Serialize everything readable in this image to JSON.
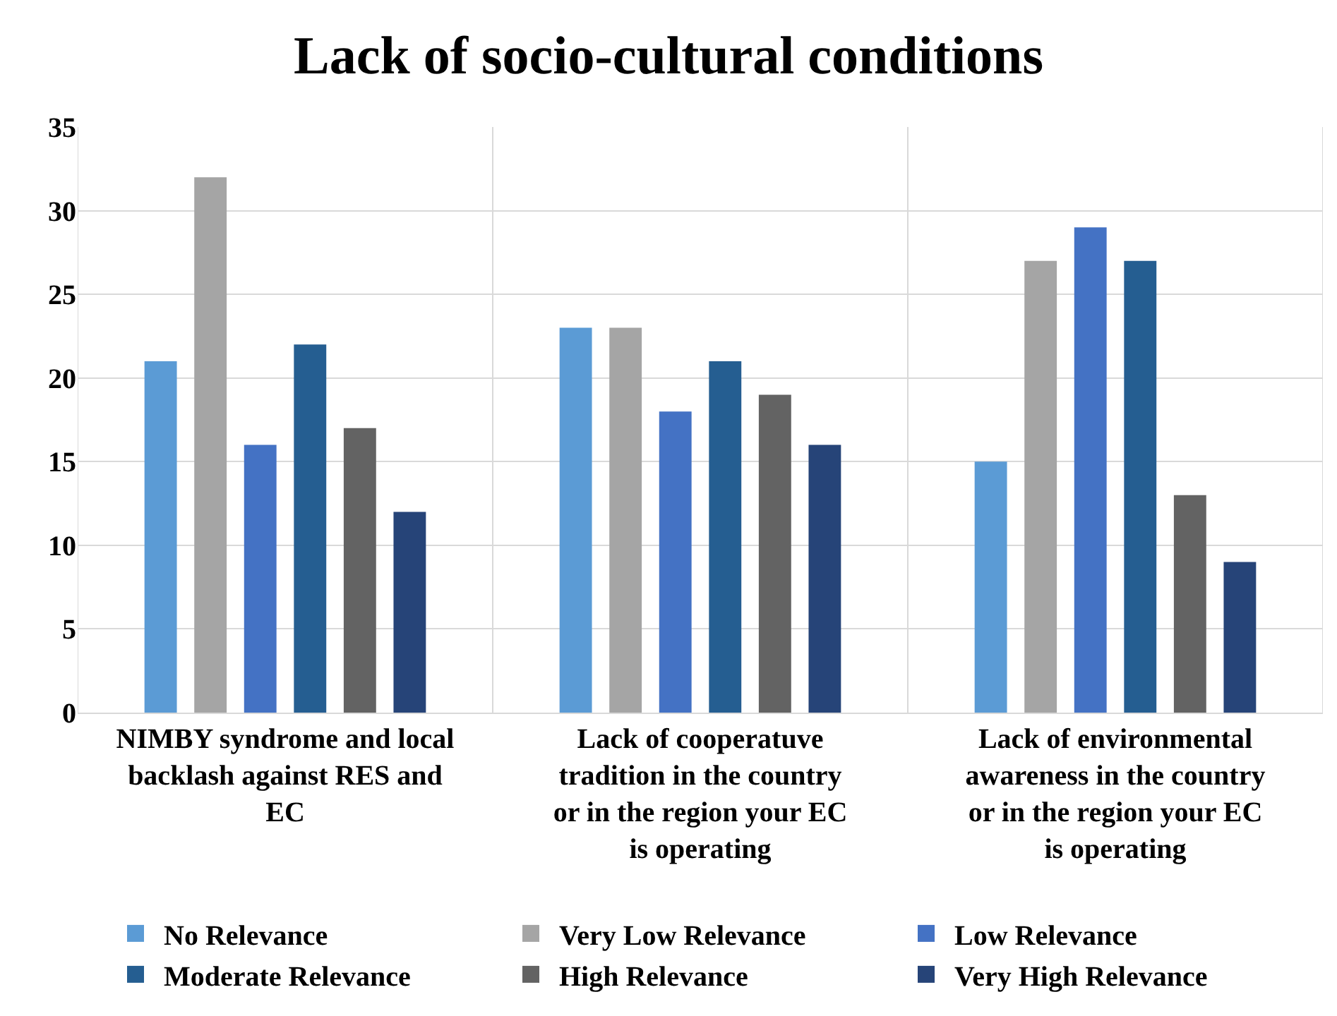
{
  "chart_data": {
    "type": "bar",
    "title": "Lack of socio-cultural conditions",
    "categories": [
      "NIMBY syndrome and local backlash against RES and EC",
      "Lack of cooperatuve tradition in the country or in the region your EC is operating",
      "Lack of environmental awareness in the country or in the region your EC is operating"
    ],
    "series": [
      {
        "name": "No Relevance",
        "color": "#5b9bd5",
        "values": [
          21,
          23,
          15
        ]
      },
      {
        "name": "Very Low Relevance",
        "color": "#a5a5a5",
        "values": [
          32,
          23,
          27
        ]
      },
      {
        "name": "Low Relevance",
        "color": "#4472c4",
        "values": [
          16,
          18,
          29
        ]
      },
      {
        "name": "Moderate Relevance",
        "color": "#255e91",
        "values": [
          22,
          21,
          27
        ]
      },
      {
        "name": "High Relevance",
        "color": "#636363",
        "values": [
          17,
          19,
          13
        ]
      },
      {
        "name": "Very High Relevance",
        "color": "#264478",
        "values": [
          12,
          16,
          9
        ]
      }
    ],
    "ylim": [
      0,
      35
    ],
    "yticks": [
      0,
      5,
      10,
      15,
      20,
      25,
      30,
      35
    ],
    "grid": true,
    "legend": "bottom"
  }
}
